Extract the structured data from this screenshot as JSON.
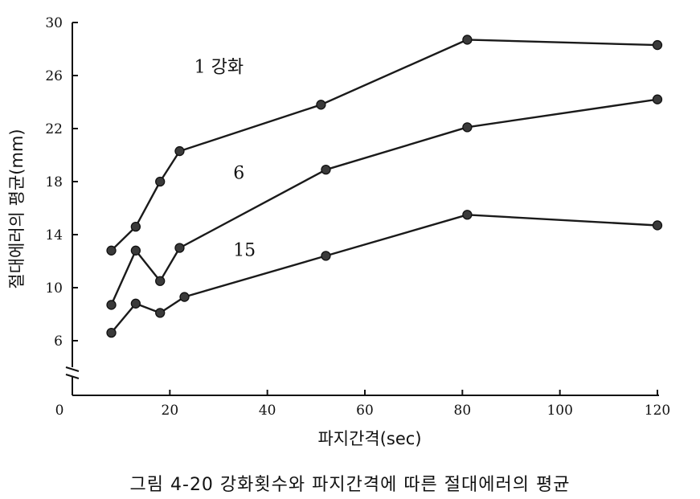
{
  "chart_data": {
    "type": "line",
    "title": "그림 4-20 강화횟수와 파지간격에 따른 절대에러의 평균",
    "xlabel": "파지간격(sec)",
    "ylabel": "절대에러의 평균(mm)",
    "xticks": [
      "0",
      "20",
      "40",
      "60",
      "80",
      "100",
      "120"
    ],
    "yticks": [
      "6",
      "10",
      "14",
      "18",
      "22",
      "26",
      "30"
    ],
    "xlim": [
      0,
      120
    ],
    "ylim": [
      6,
      30
    ],
    "grid": false,
    "axis_break": "y",
    "series": [
      {
        "name": "1 강화",
        "label_x": 25,
        "label_y": 26.2,
        "points": [
          [
            8,
            12.8
          ],
          [
            13,
            14.6
          ],
          [
            18,
            18.0
          ],
          [
            22,
            20.3
          ],
          [
            51,
            23.8
          ],
          [
            81,
            28.7
          ],
          [
            120,
            28.3
          ]
        ]
      },
      {
        "name": "6",
        "label_x": 33,
        "label_y": 18.2,
        "points": [
          [
            8,
            8.7
          ],
          [
            13,
            12.8
          ],
          [
            18,
            10.5
          ],
          [
            22,
            13.0
          ],
          [
            52,
            18.9
          ],
          [
            81,
            22.1
          ],
          [
            120,
            24.2
          ]
        ]
      },
      {
        "name": "15",
        "label_x": 33,
        "label_y": 12.4,
        "points": [
          [
            8,
            6.6
          ],
          [
            13,
            8.8
          ],
          [
            18,
            8.1
          ],
          [
            23,
            9.3
          ],
          [
            52,
            12.4
          ],
          [
            81,
            15.5
          ],
          [
            120,
            14.7
          ]
        ]
      }
    ]
  }
}
